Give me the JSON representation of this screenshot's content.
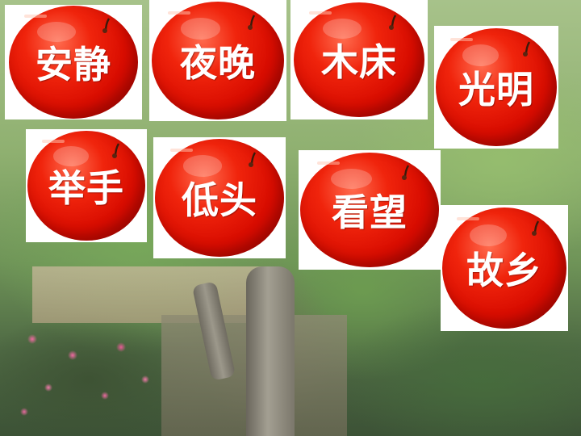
{
  "words": [
    "安静",
    "夜晚",
    "木床",
    "光明",
    "举手",
    "低头",
    "看望",
    "故乡"
  ],
  "colors": {
    "apple_red": "#e0140a",
    "card_white": "#ffffff",
    "text_white": "#ffffff"
  }
}
